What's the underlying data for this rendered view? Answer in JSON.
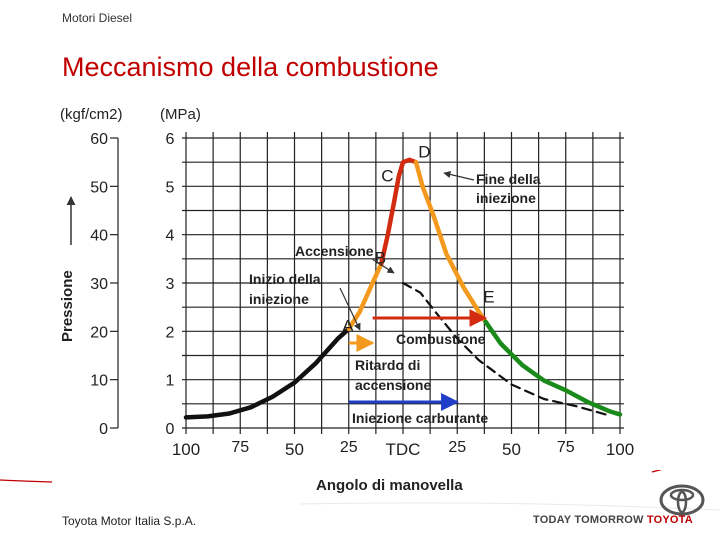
{
  "header": {
    "section": "Motori Diesel",
    "title": "Meccanismo della combustione"
  },
  "footer": {
    "company": "Toyota Motor Italia S.p.A.",
    "slogan_a": "TODAY",
    "slogan_b": "TOMORROW",
    "slogan_brand": "TOYOTA"
  },
  "colors": {
    "title": "#c00000",
    "black_curve": "#111111",
    "orange": "#f39a1e",
    "red": "#d22b10",
    "green": "#1a8a1a",
    "blue": "#1f3fc8",
    "brand_red": "#c00000"
  },
  "chart_data": {
    "type": "line",
    "title": "",
    "xlabel": "Angolo di manovella",
    "ylabel": "Pressione",
    "y_units": [
      "(kgf/cm2)",
      "(MPa)"
    ],
    "x_ticks": [
      "100",
      "75",
      "50",
      "25",
      "TDC",
      "25",
      "50",
      "75",
      "100"
    ],
    "x_values": [
      -100,
      -75,
      -50,
      -25,
      0,
      25,
      50,
      75,
      100
    ],
    "xlim": [
      -100,
      100
    ],
    "ylim": [
      0,
      60
    ],
    "y_ticks_kgf": [
      "0",
      "10",
      "20",
      "30",
      "40",
      "50",
      "60"
    ],
    "y_ticks_mpa": [
      "0",
      "1",
      "2",
      "3",
      "4",
      "5",
      "6"
    ],
    "grid": true,
    "series": [
      {
        "segment": "compression",
        "color": "black",
        "points": [
          [
            -100,
            2.2
          ],
          [
            -90,
            2.4
          ],
          [
            -80,
            3
          ],
          [
            -70,
            4.3
          ],
          [
            -60,
            6.5
          ],
          [
            -50,
            9.4
          ],
          [
            -40,
            13.5
          ],
          [
            -30,
            18.5
          ],
          [
            -25,
            20.5
          ]
        ]
      },
      {
        "segment": "ignition-delay",
        "color": "orange",
        "points": [
          [
            -25,
            20.5
          ],
          [
            -20,
            24
          ],
          [
            -15,
            29
          ],
          [
            -10,
            34
          ]
        ]
      },
      {
        "segment": "rapid-combustion",
        "color": "red",
        "points": [
          [
            -10,
            34
          ],
          [
            -7,
            40
          ],
          [
            -4,
            47
          ],
          [
            -2,
            52
          ],
          [
            0,
            55
          ],
          [
            3,
            55.5
          ],
          [
            6,
            55
          ]
        ]
      },
      {
        "segment": "controlled-combustion",
        "color": "orange",
        "points": [
          [
            6,
            55
          ],
          [
            9,
            50
          ],
          [
            14,
            44
          ],
          [
            20,
            36
          ],
          [
            28,
            29
          ],
          [
            35,
            24
          ],
          [
            38,
            22
          ]
        ]
      },
      {
        "segment": "after-burning",
        "color": "green",
        "points": [
          [
            38,
            22
          ],
          [
            45,
            17.5
          ],
          [
            55,
            13
          ],
          [
            65,
            9.8
          ],
          [
            75,
            7.8
          ],
          [
            85,
            5.4
          ],
          [
            95,
            3.5
          ],
          [
            100,
            2.8
          ]
        ]
      },
      {
        "segment": "motored-expansion",
        "color": "black",
        "dashed": true,
        "points": [
          [
            0,
            30
          ],
          [
            8,
            28
          ],
          [
            15,
            24
          ],
          [
            25,
            18.5
          ],
          [
            35,
            14
          ],
          [
            50,
            9
          ],
          [
            65,
            6
          ],
          [
            80,
            4.5
          ],
          [
            95,
            2.6
          ]
        ]
      }
    ],
    "point_labels": [
      {
        "label": "A",
        "x": -28,
        "y": 20
      },
      {
        "label": "B",
        "x": -13,
        "y": 34
      },
      {
        "label": "C",
        "x": -10,
        "y": 51
      },
      {
        "label": "D",
        "x": 7,
        "y": 56
      },
      {
        "label": "E",
        "x": 37,
        "y": 26
      }
    ],
    "annotations": {
      "fine_iniezione": [
        "Fine della",
        "iniezione"
      ],
      "accensione": "Accensione",
      "inizio_iniezione": [
        "Inizio della",
        "iniezione"
      ],
      "combustione": "Combustione",
      "ritardo_accensione": [
        "Ritardo di",
        "accensione"
      ],
      "iniezione_carburante": "Iniezione carburante"
    },
    "ranges": [
      {
        "name": "ritardo-accensione",
        "x": [
          -25,
          -14
        ],
        "color": "orange"
      },
      {
        "name": "combustione",
        "x": [
          -14,
          38
        ],
        "color": "red"
      },
      {
        "name": "iniezione-carburante",
        "x": [
          -25,
          25
        ],
        "color": "blue"
      }
    ]
  }
}
